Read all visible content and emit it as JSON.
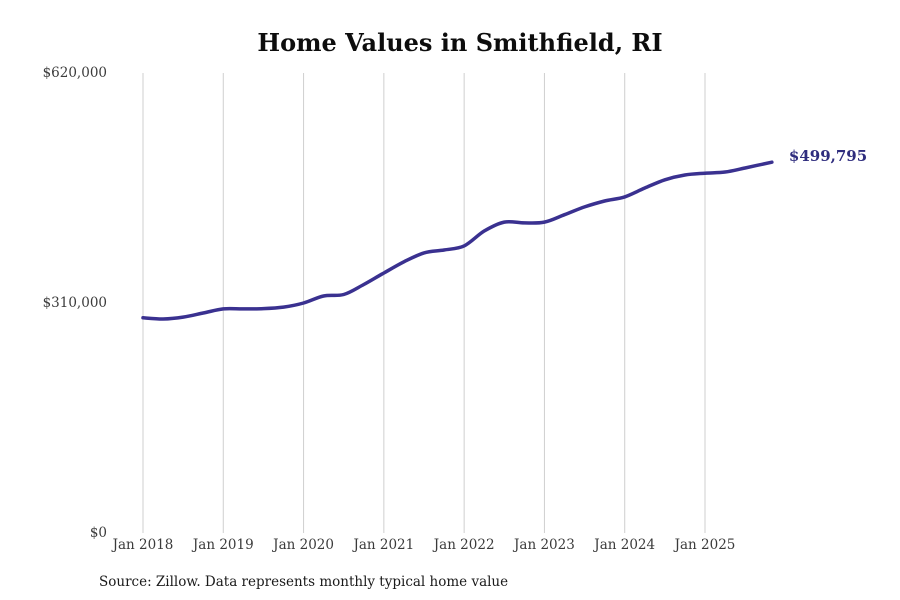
{
  "title": "Home Values in Smithfield, RI",
  "source_note": "Source: Zillow. Data represents monthly typical home value",
  "colors": {
    "line": "#3a3190",
    "end_label": "#2f2d7e",
    "gridline": "#cfcfcf",
    "title": "#0d0d0d",
    "tick": "#3b3b3b"
  },
  "chart_data": {
    "type": "line",
    "title": "Home Values in Smithfield, RI",
    "xlabel": "",
    "ylabel": "",
    "ylim": [
      0,
      620000
    ],
    "grid": "vertical-only",
    "legend": "none",
    "y_ticks": [
      {
        "label": "$0",
        "value": 0
      },
      {
        "label": "$310,000",
        "value": 310000
      },
      {
        "label": "$620,000",
        "value": 620000
      }
    ],
    "x_tick_labels": [
      "Jan 2018",
      "Jan 2019",
      "Jan 2020",
      "Jan 2021",
      "Jan 2022",
      "Jan 2023",
      "Jan 2024",
      "Jan 2025"
    ],
    "final_value": 499795,
    "final_value_label": "$499,795",
    "series": [
      {
        "name": "Monthly typical home value",
        "points": [
          {
            "date": "Jan 2018",
            "t": 0,
            "v": 290000
          },
          {
            "date": "Apr 2018",
            "t": 3,
            "v": 288500
          },
          {
            "date": "Jul 2018",
            "t": 6,
            "v": 291000
          },
          {
            "date": "Oct 2018",
            "t": 9,
            "v": 296500
          },
          {
            "date": "Jan 2019",
            "t": 12,
            "v": 302000
          },
          {
            "date": "Apr 2019",
            "t": 15,
            "v": 302000
          },
          {
            "date": "Jul 2019",
            "t": 18,
            "v": 302500
          },
          {
            "date": "Oct 2019",
            "t": 21,
            "v": 304500
          },
          {
            "date": "Jan 2020",
            "t": 24,
            "v": 310000
          },
          {
            "date": "Apr 2020",
            "t": 27,
            "v": 319500
          },
          {
            "date": "Jul 2020",
            "t": 30,
            "v": 321500
          },
          {
            "date": "Oct 2020",
            "t": 33,
            "v": 335000
          },
          {
            "date": "Jan 2021",
            "t": 36,
            "v": 350500
          },
          {
            "date": "Apr 2021",
            "t": 39,
            "v": 365500
          },
          {
            "date": "Jul 2021",
            "t": 42,
            "v": 377500
          },
          {
            "date": "Oct 2021",
            "t": 45,
            "v": 381500
          },
          {
            "date": "Jan 2022",
            "t": 48,
            "v": 387000
          },
          {
            "date": "Apr 2022",
            "t": 51,
            "v": 407000
          },
          {
            "date": "Jul 2022",
            "t": 54,
            "v": 419000
          },
          {
            "date": "Oct 2022",
            "t": 57,
            "v": 418000
          },
          {
            "date": "Jan 2023",
            "t": 60,
            "v": 419000
          },
          {
            "date": "Apr 2023",
            "t": 63,
            "v": 429000
          },
          {
            "date": "Jul 2023",
            "t": 66,
            "v": 439500
          },
          {
            "date": "Oct 2023",
            "t": 69,
            "v": 447500
          },
          {
            "date": "Jan 2024",
            "t": 72,
            "v": 453000
          },
          {
            "date": "Apr 2024",
            "t": 75,
            "v": 465000
          },
          {
            "date": "Jul 2024",
            "t": 78,
            "v": 476000
          },
          {
            "date": "Oct 2024",
            "t": 81,
            "v": 482500
          },
          {
            "date": "Jan 2025",
            "t": 84,
            "v": 485000
          },
          {
            "date": "Apr 2025",
            "t": 87,
            "v": 486500
          },
          {
            "date": "Jul 2025",
            "t": 90,
            "v": 492000
          },
          {
            "date": "Nov 2025",
            "t": 94,
            "v": 499795
          }
        ]
      }
    ]
  }
}
